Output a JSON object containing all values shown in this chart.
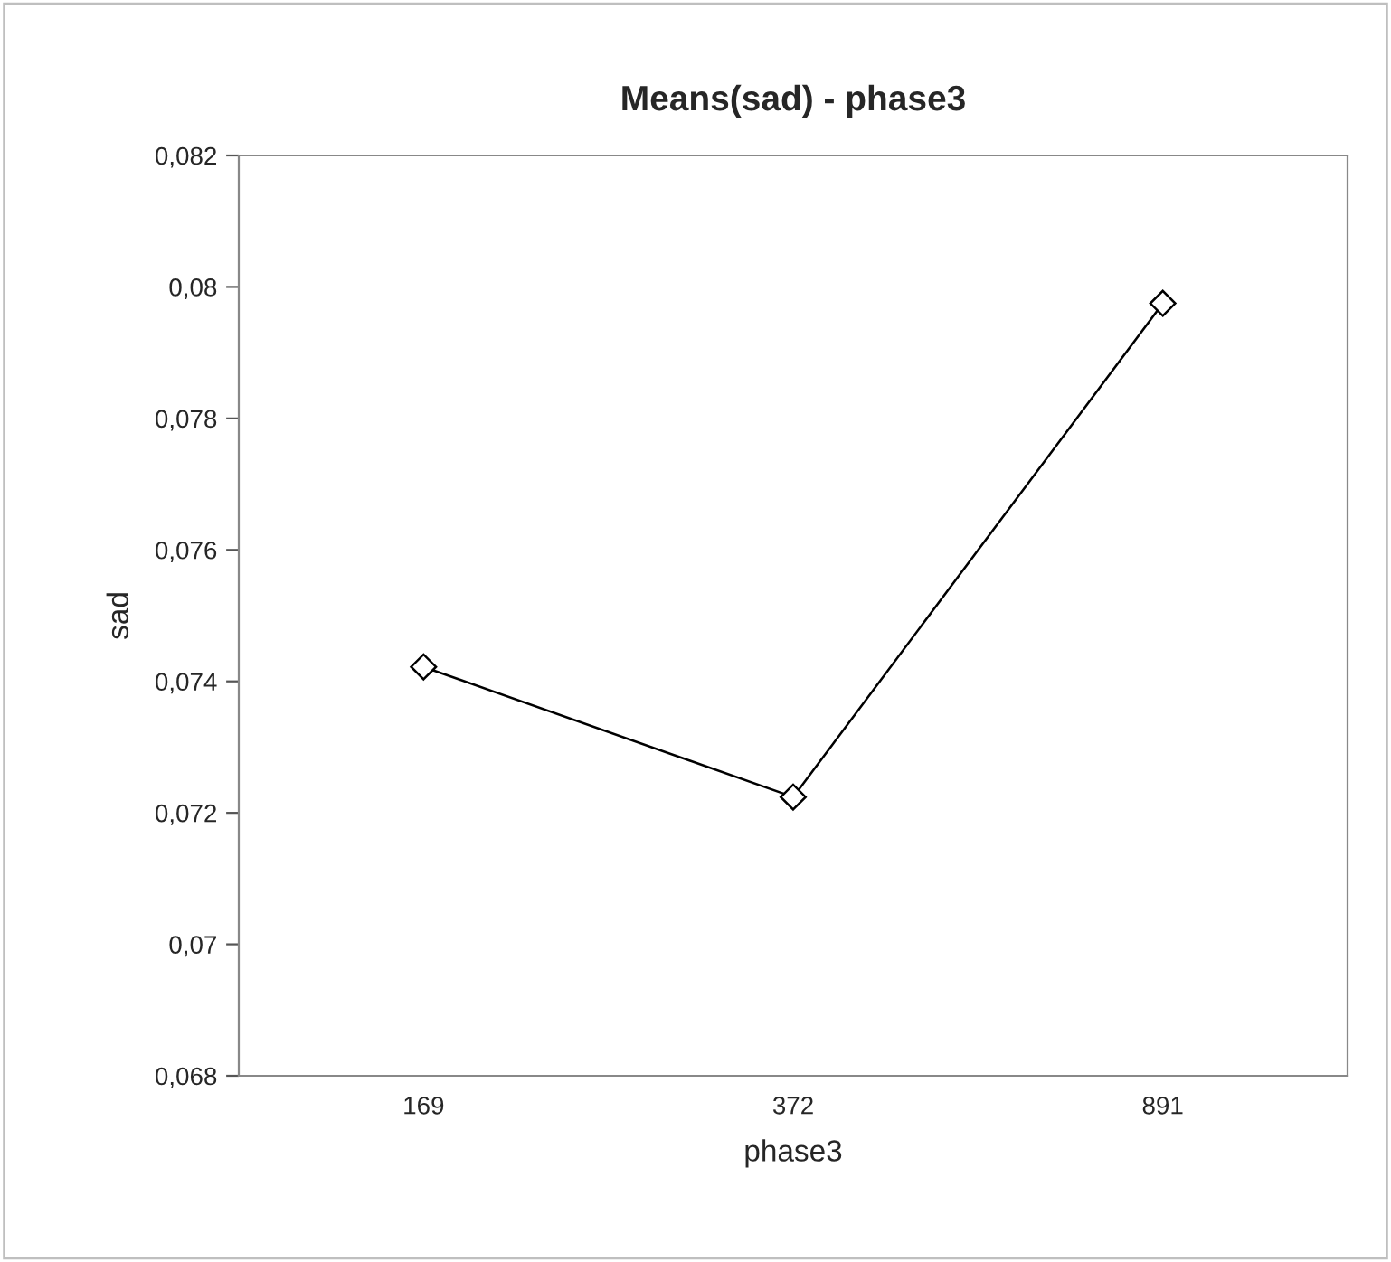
{
  "chart_data": {
    "type": "line",
    "title": "Means(sad) - phase3",
    "xlabel": "phase3",
    "ylabel": "sad",
    "categories": [
      "169",
      "372",
      "891"
    ],
    "series": [
      {
        "color": "#000000",
        "values": [
          0.07422,
          0.07224,
          0.07975
        ]
      }
    ],
    "ylim": [
      0.068,
      0.082
    ],
    "yticks": [
      {
        "value": 0.068,
        "label": "0,068"
      },
      {
        "value": 0.07,
        "label": "0,07"
      },
      {
        "value": 0.072,
        "label": "0,072"
      },
      {
        "value": 0.074,
        "label": "0,074"
      },
      {
        "value": 0.076,
        "label": "0,076"
      },
      {
        "value": 0.078,
        "label": "0,078"
      },
      {
        "value": 0.08,
        "label": "0,08"
      },
      {
        "value": 0.082,
        "label": "0,082"
      }
    ],
    "marker": "diamond",
    "line_style": "solid",
    "grid": false,
    "legend": false
  }
}
